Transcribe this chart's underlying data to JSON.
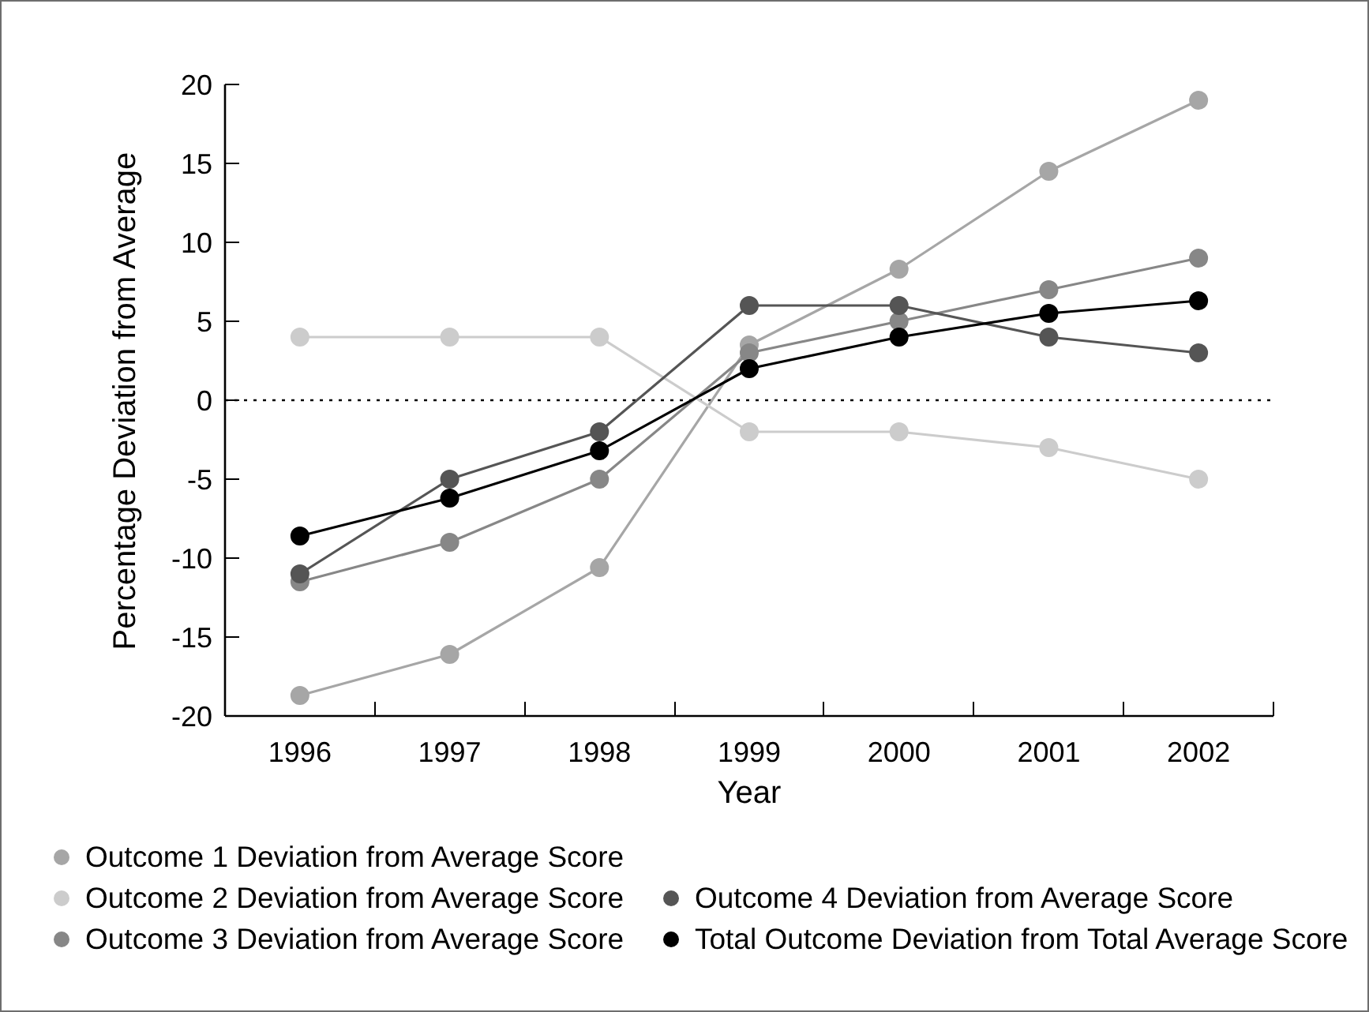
{
  "chart_data": {
    "type": "line",
    "xlabel": "Year",
    "ylabel": "Percentage Deviation from Average",
    "categories": [
      "1996",
      "1997",
      "1998",
      "1999",
      "2000",
      "2001",
      "2002"
    ],
    "ylim": [
      -20,
      20
    ],
    "yticks": [
      -20,
      -15,
      -10,
      -5,
      0,
      5,
      10,
      15,
      20
    ],
    "series": [
      {
        "name": "Outcome 1 Deviation from Average Score",
        "color": "#a6a6a6",
        "values": [
          -18.7,
          -16.1,
          -10.6,
          3.5,
          8.3,
          14.5,
          19.0
        ]
      },
      {
        "name": "Outcome 2 Deviation from Average Score",
        "color": "#cccccc",
        "values": [
          4,
          4,
          4,
          -2,
          -2,
          -3,
          -5
        ]
      },
      {
        "name": "Outcome 3 Deviation from Average Score",
        "color": "#878787",
        "values": [
          -11.5,
          -9,
          -5,
          3,
          5,
          7,
          9
        ]
      },
      {
        "name": "Outcome 4 Deviation from Average Score",
        "color": "#555555",
        "values": [
          -11,
          -5,
          -2,
          6,
          6,
          4,
          3
        ]
      },
      {
        "name": "Total Outcome Deviation from Total Average Score",
        "color": "#000000",
        "values": [
          -8.6,
          -6.2,
          -3.2,
          2,
          4,
          5.5,
          6.3
        ]
      }
    ],
    "ref_lines": [
      {
        "axis": "y",
        "value": 0,
        "color": "#000000",
        "line_style": "dotted"
      }
    ],
    "grid": false,
    "legend": "bottom",
    "marker": "circle",
    "line_style": "solid"
  }
}
